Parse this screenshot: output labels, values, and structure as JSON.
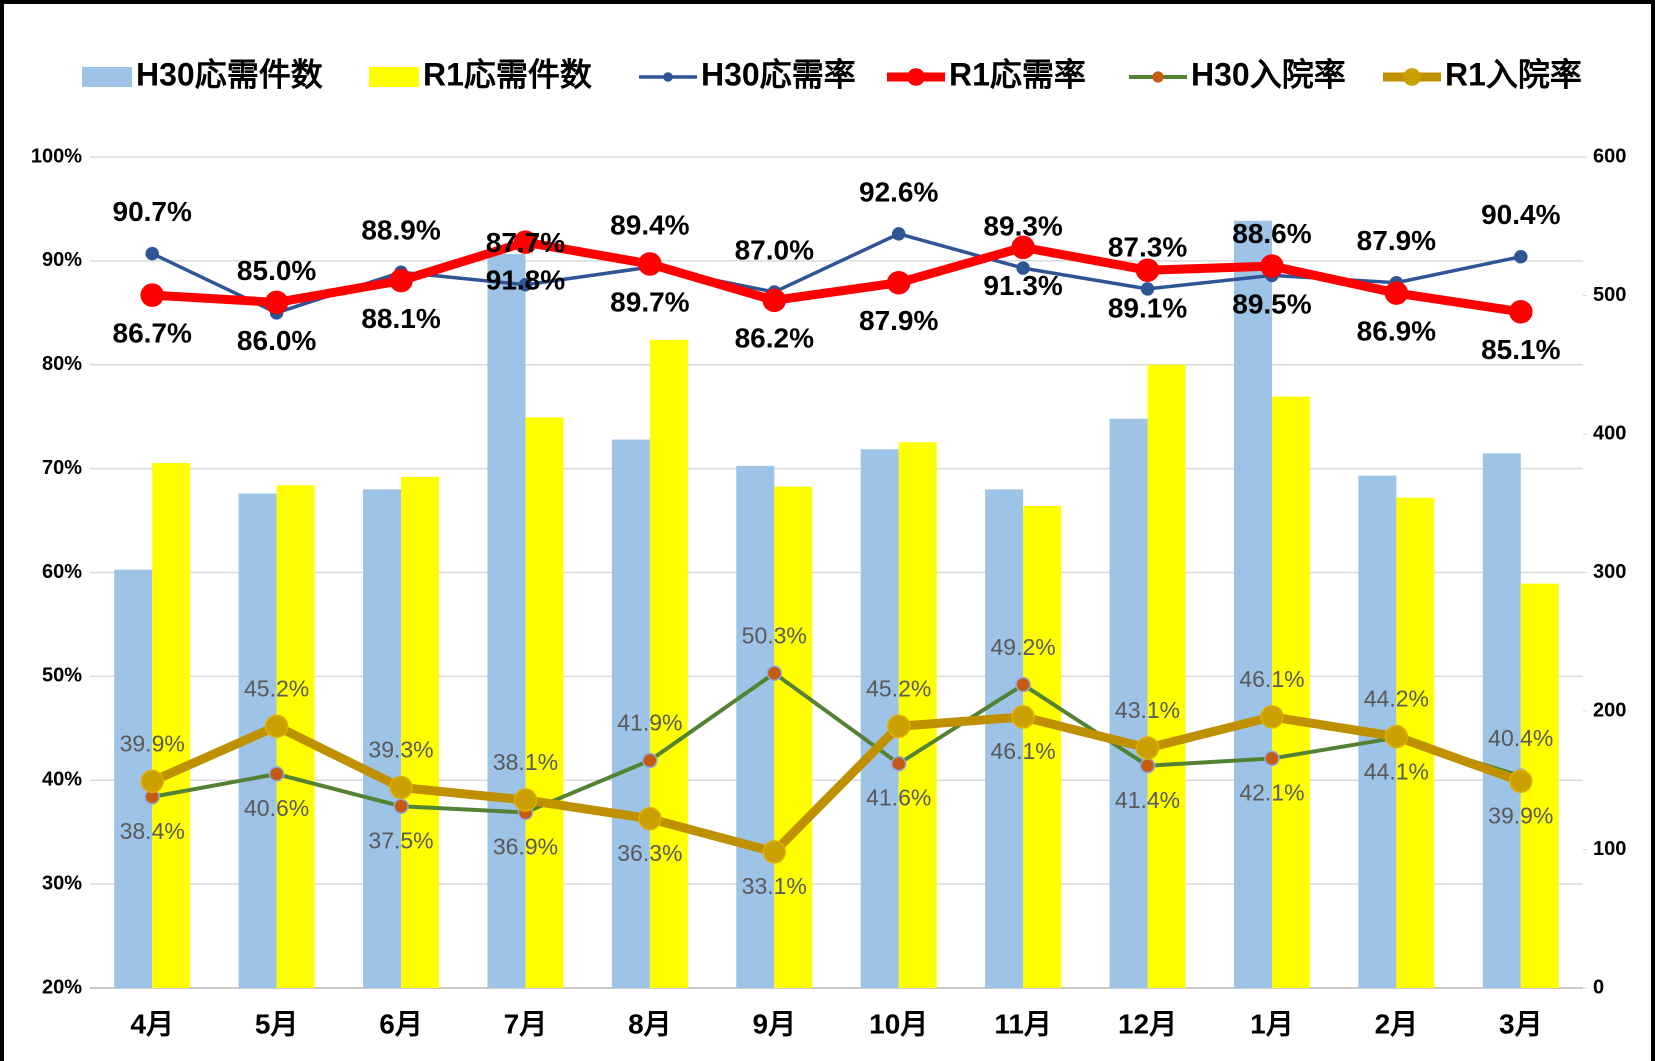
{
  "chart_data": {
    "type": "bar",
    "categories": [
      "4月",
      "5月",
      "6月",
      "7月",
      "8月",
      "9月",
      "10月",
      "11月",
      "12月",
      "1月",
      "2月",
      "3月"
    ],
    "series": [
      {
        "name": "H30応需件数",
        "type": "bar",
        "axis": "y2",
        "color": "#9dc3e6",
        "values": [
          302,
          357,
          360,
          530,
          396,
          377,
          389,
          360,
          411,
          554,
          370,
          386
        ]
      },
      {
        "name": "R1応需件数",
        "type": "bar",
        "axis": "y2",
        "color": "#ffff00",
        "values": [
          379,
          363,
          369,
          412,
          468,
          362,
          394,
          348,
          450,
          427,
          354,
          292
        ]
      },
      {
        "name": "H30応需率",
        "type": "line",
        "color": "#2f5597",
        "values": [
          90.7,
          85.0,
          88.9,
          87.7,
          89.4,
          87.0,
          92.6,
          89.3,
          87.3,
          88.6,
          87.9,
          90.4
        ],
        "value_labels": [
          "90.7%",
          "85.0%",
          "88.9%",
          "87.7%",
          "89.4%",
          "87.0%",
          "92.6%",
          "89.3%",
          "87.3%",
          "88.6%",
          "87.9%",
          "90.4%"
        ]
      },
      {
        "name": "R1応需率",
        "type": "line",
        "color": "#ff0000",
        "values": [
          86.7,
          86.0,
          88.1,
          91.8,
          89.7,
          86.2,
          87.9,
          91.3,
          89.1,
          89.5,
          86.9,
          85.1
        ],
        "value_labels": [
          "86.7%",
          "86.0%",
          "88.1%",
          "91.8%",
          "89.7%",
          "86.2%",
          "87.9%",
          "91.3%",
          "89.1%",
          "89.5%",
          "86.9%",
          "85.1%"
        ]
      },
      {
        "name": "H30入院率",
        "type": "line",
        "color": "#548235",
        "marker_color": "#c55a11",
        "values": [
          38.4,
          40.6,
          37.5,
          36.9,
          41.9,
          50.3,
          41.6,
          49.2,
          41.4,
          42.1,
          44.1,
          40.4
        ],
        "value_labels": [
          "38.4%",
          "40.6%",
          "37.5%",
          "36.9%",
          "41.9%",
          "50.3%",
          "41.6%",
          "49.2%",
          "41.4%",
          "42.1%",
          "44.1%",
          "40.4%"
        ]
      },
      {
        "name": "R1入院率",
        "type": "line",
        "color": "#bf9000",
        "marker_color": "#c9a000",
        "values": [
          39.9,
          45.2,
          39.3,
          38.1,
          36.3,
          33.1,
          45.2,
          46.1,
          43.1,
          46.1,
          44.2,
          39.9
        ],
        "value_labels": [
          "39.9%",
          "45.2%",
          "39.3%",
          "38.1%",
          "36.3%",
          "33.1%",
          "45.2%",
          "46.1%",
          "43.1%",
          "46.1%",
          "44.2%",
          "39.9%"
        ]
      }
    ],
    "ylim": [
      20,
      100
    ],
    "yticks": [
      {
        "value": 20,
        "label": "20%"
      },
      {
        "value": 30,
        "label": "30%"
      },
      {
        "value": 40,
        "label": "40%"
      },
      {
        "value": 50,
        "label": "50%"
      },
      {
        "value": 60,
        "label": "60%"
      },
      {
        "value": 70,
        "label": "70%"
      },
      {
        "value": 80,
        "label": "80%"
      },
      {
        "value": 90,
        "label": "90%"
      },
      {
        "value": 100,
        "label": "100%"
      }
    ],
    "y2lim": [
      0,
      600
    ],
    "y2ticks": [
      0,
      100,
      200,
      300,
      400,
      500,
      600
    ],
    "grid": true,
    "legend": "top"
  }
}
